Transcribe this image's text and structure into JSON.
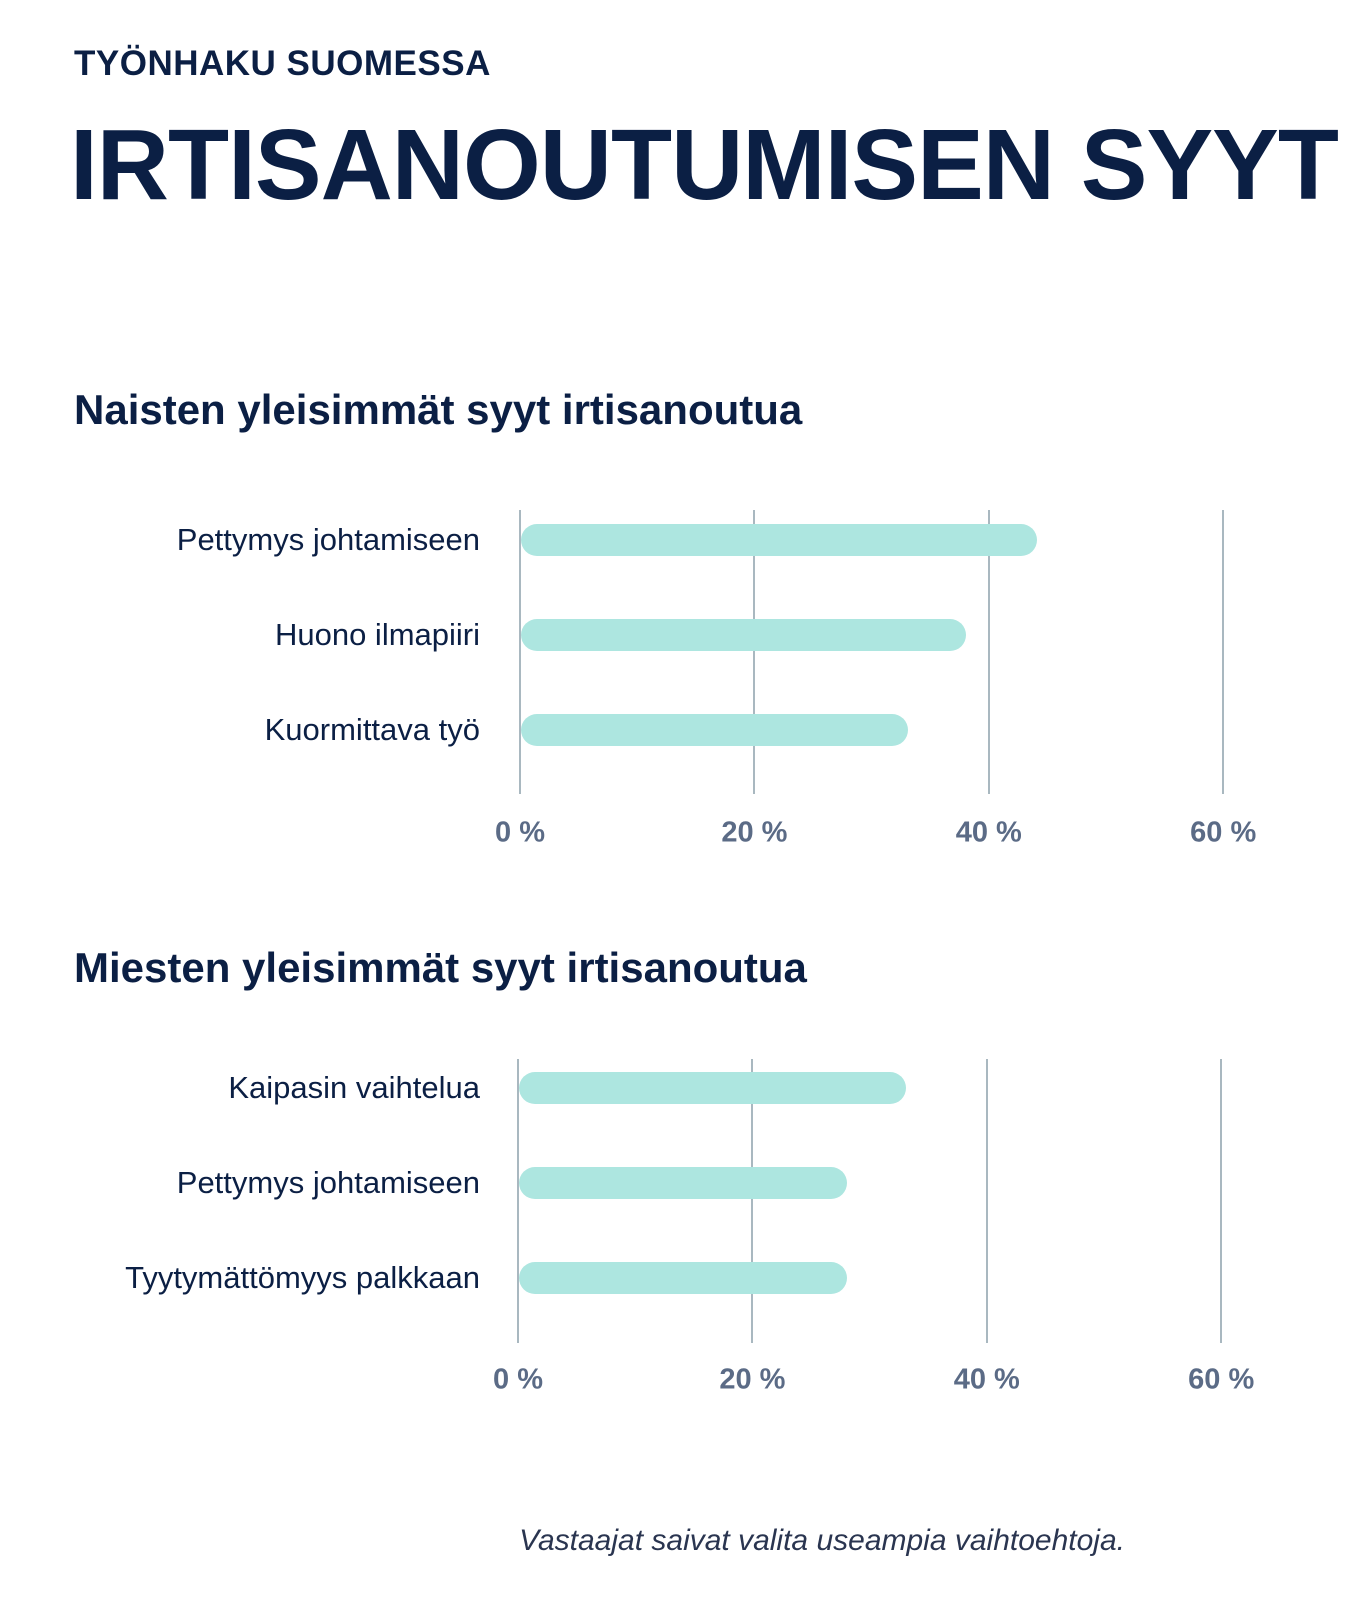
{
  "header": {
    "kicker": "TYÖNHAKU SUOMESSA",
    "title": "IRTISANOUTUMISEN SYYT"
  },
  "chart_data": [
    {
      "type": "bar",
      "orientation": "horizontal",
      "title": "Naisten yleisimmät syyt irtisanoutua",
      "categories": [
        "Pettymys johtamiseen",
        "Huono ilmapiiri",
        "Kuormittava työ"
      ],
      "values": [
        44,
        38,
        33
      ],
      "unit": "%",
      "xlim": [
        0,
        60
      ],
      "ticks": [
        0,
        20,
        40,
        60
      ],
      "tick_labels": [
        "0 %",
        "20 %",
        "40 %",
        "60 %"
      ],
      "grid": true,
      "color": "#ade6e0"
    },
    {
      "type": "bar",
      "orientation": "horizontal",
      "title": "Miesten yleisimmät syyt irtisanoutua",
      "categories": [
        "Kaipasin vaihtelua",
        "Pettymys johtamiseen",
        "Tyytymättömyys palkkaan"
      ],
      "values": [
        33,
        28,
        28
      ],
      "unit": "%",
      "xlim": [
        0,
        60
      ],
      "ticks": [
        0,
        20,
        40,
        60
      ],
      "tick_labels": [
        "0 %",
        "20 %",
        "40 %",
        "60 %"
      ],
      "grid": true,
      "color": "#ade6e0"
    }
  ],
  "footnote": "Vastaajat saivat valita useampia vaihtoehtoja."
}
